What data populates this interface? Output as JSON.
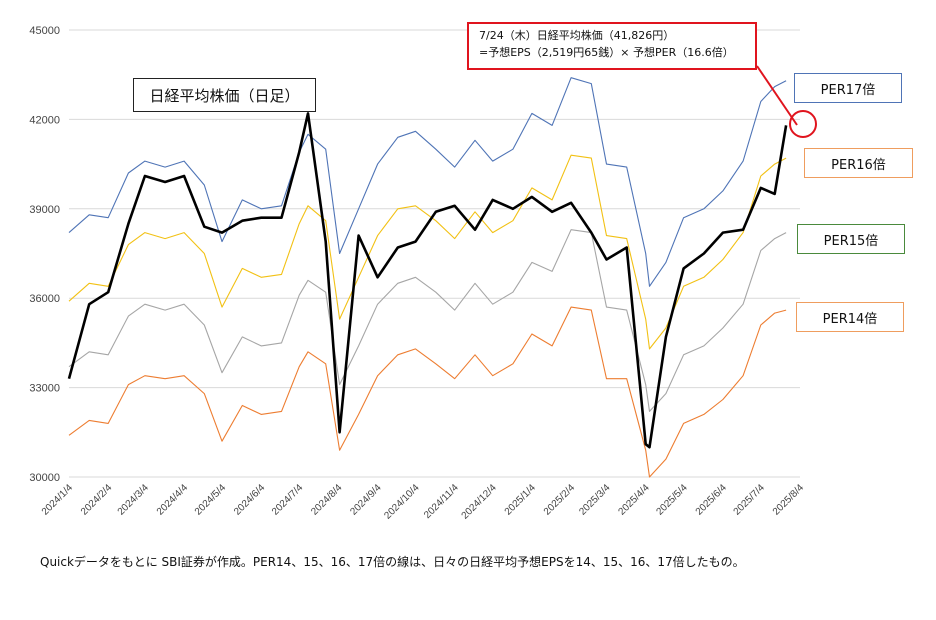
{
  "chart_data": {
    "type": "line",
    "title": "日経平均株価（日足）",
    "ylim": [
      30000,
      45000
    ],
    "yticks": [
      "30000",
      "33000",
      "36000",
      "39000",
      "42000",
      "45000"
    ],
    "xticks": [
      "2024/1/4",
      "2024/2/4",
      "2024/3/4",
      "2024/4/4",
      "2024/5/4",
      "2024/6/4",
      "2024/7/4",
      "2024/8/4",
      "2024/9/4",
      "2024/10/4",
      "2024/11/4",
      "2024/12/4",
      "2025/1/4",
      "2025/2/4",
      "2025/3/4",
      "2025/4/4",
      "2025/5/4",
      "2025/6/4",
      "2025/7/4",
      "2025/8/4"
    ],
    "grid": true,
    "x": [
      "2024/1/4",
      "2024/1/20",
      "2024/2/4",
      "2024/2/20",
      "2024/3/4",
      "2024/3/20",
      "2024/4/4",
      "2024/4/20",
      "2024/5/4",
      "2024/5/20",
      "2024/6/4",
      "2024/6/20",
      "2024/7/4",
      "2024/7/11",
      "2024/7/25",
      "2024/8/5",
      "2024/8/20",
      "2024/9/4",
      "2024/9/20",
      "2024/10/4",
      "2024/10/20",
      "2024/11/4",
      "2024/11/20",
      "2024/12/4",
      "2024/12/20",
      "2025/1/4",
      "2025/1/20",
      "2025/2/4",
      "2025/2/20",
      "2025/3/4",
      "2025/3/20",
      "2025/4/4",
      "2025/4/7",
      "2025/4/20",
      "2025/5/4",
      "2025/5/20",
      "2025/6/4",
      "2025/6/20",
      "2025/7/4",
      "2025/7/15",
      "2025/7/24"
    ],
    "series": [
      {
        "name": "PER17倍",
        "color": "#4f74b6",
        "values": [
          38200,
          38800,
          38700,
          40200,
          40600,
          40400,
          40600,
          39800,
          37900,
          39300,
          39000,
          39100,
          40900,
          41500,
          41000,
          37500,
          39000,
          40500,
          41400,
          41600,
          41000,
          40400,
          41300,
          40600,
          41000,
          42200,
          41800,
          43400,
          43200,
          40500,
          40400,
          37500,
          36400,
          37200,
          38700,
          39000,
          39600,
          40600,
          42600,
          43100,
          43300
        ]
      },
      {
        "name": "PER16倍",
        "color": "#f2c114",
        "values": [
          35900,
          36500,
          36400,
          37800,
          38200,
          38000,
          38200,
          37500,
          35700,
          37000,
          36700,
          36800,
          38500,
          39100,
          38600,
          35300,
          36700,
          38100,
          39000,
          39100,
          38600,
          38000,
          38900,
          38200,
          38600,
          39700,
          39300,
          40800,
          40700,
          38100,
          38000,
          35300,
          34300,
          35000,
          36400,
          36700,
          37300,
          38200,
          40100,
          40500,
          40700
        ]
      },
      {
        "name": "PER15倍",
        "color": "#a6a6a6",
        "values": [
          33700,
          34200,
          34100,
          35400,
          35800,
          35600,
          35800,
          35100,
          33500,
          34700,
          34400,
          34500,
          36100,
          36600,
          36200,
          33100,
          34400,
          35800,
          36500,
          36700,
          36200,
          35600,
          36500,
          35800,
          36200,
          37200,
          36900,
          38300,
          38200,
          35700,
          35600,
          33100,
          32200,
          32800,
          34100,
          34400,
          35000,
          35800,
          37600,
          38000,
          38200
        ]
      },
      {
        "name": "PER14倍",
        "color": "#ed7d31",
        "values": [
          31400,
          31900,
          31800,
          33100,
          33400,
          33300,
          33400,
          32800,
          31200,
          32400,
          32100,
          32200,
          33700,
          34200,
          33800,
          30900,
          32100,
          33400,
          34100,
          34300,
          33800,
          33300,
          34100,
          33400,
          33800,
          34800,
          34400,
          35700,
          35600,
          33300,
          33300,
          30900,
          30000,
          30600,
          31800,
          32100,
          32600,
          33400,
          35100,
          35500,
          35600
        ]
      },
      {
        "name": "日経平均株価",
        "color": "#000000",
        "values": [
          33300,
          35800,
          36200,
          38500,
          40100,
          39900,
          40100,
          38400,
          38200,
          38600,
          38700,
          38700,
          40900,
          42200,
          37900,
          31500,
          38100,
          36700,
          37700,
          37900,
          38900,
          39100,
          38300,
          39300,
          39000,
          39400,
          38900,
          39200,
          38200,
          37300,
          37700,
          31100,
          31000,
          34700,
          37000,
          37500,
          38200,
          38300,
          39700,
          39500,
          41800
        ]
      }
    ],
    "annotation": {
      "line1": "7/24（木）日経平均株価（41,826円）",
      "line2": "=予想EPS（2,519円65銭）× 予想PER（16.6倍）"
    }
  },
  "labels": {
    "title": "日経平均株価（日足）",
    "per17": "PER17倍",
    "per16": "PER16倍",
    "per15": "PER15倍",
    "per14": "PER14倍",
    "source": "Quickデータをもとに SBI証券が作成。PER14、15、16、17倍の線は、日々の日経平均予想EPSを14、15、16、17倍したもの。"
  }
}
